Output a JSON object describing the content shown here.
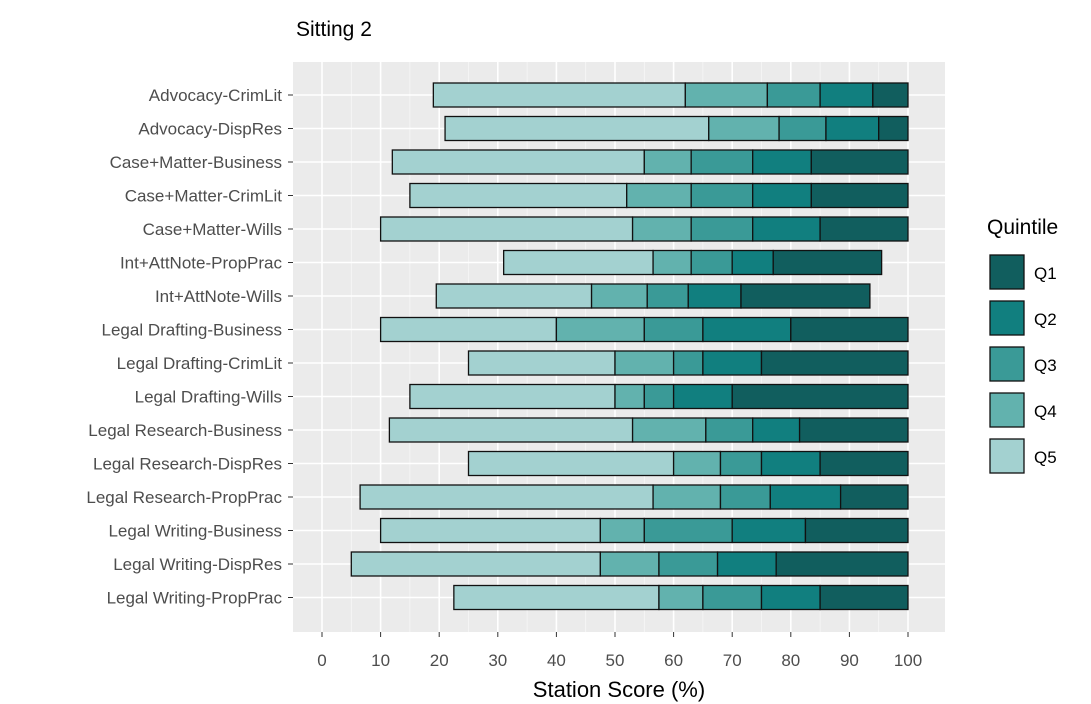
{
  "chart_data": {
    "type": "bar",
    "orientation": "horizontal",
    "stacked": true,
    "title": "Sitting 2",
    "xlabel": "Station Score (%)",
    "ylabel": "",
    "xlim": [
      -5,
      105
    ],
    "xticks": [
      0,
      10,
      20,
      30,
      40,
      50,
      60,
      70,
      80,
      90,
      100
    ],
    "grid": true,
    "legend": {
      "title": "Quintile",
      "position": "right",
      "entries": [
        "Q1",
        "Q2",
        "Q3",
        "Q4",
        "Q5"
      ]
    },
    "colors": {
      "Q1": "#115e5e",
      "Q2": "#117f7f",
      "Q3": "#3a9a97",
      "Q4": "#62b2ae",
      "Q5": "#a3d1d0"
    },
    "categories": [
      "Advocacy-CrimLit",
      "Advocacy-DispRes",
      "Case+Matter-Business",
      "Case+Matter-CrimLit",
      "Case+Matter-Wills",
      "Int+AttNote-PropPrac",
      "Int+AttNote-Wills",
      "Legal Drafting-Business",
      "Legal Drafting-CrimLit",
      "Legal Drafting-Wills",
      "Legal Research-Business",
      "Legal Research-DispRes",
      "Legal Research-PropPrac",
      "Legal Writing-Business",
      "Legal Writing-DispRes",
      "Legal Writing-PropPrac"
    ],
    "breaks_note": "min, Q5/Q4, Q4/Q3, Q3/Q2, Q2/Q1, max",
    "breaks": [
      [
        19,
        62,
        76,
        85,
        94,
        100
      ],
      [
        21,
        66,
        78,
        86,
        95,
        100
      ],
      [
        12,
        55,
        63,
        73.5,
        83.5,
        100
      ],
      [
        15,
        52,
        63,
        73.5,
        83.5,
        100
      ],
      [
        10,
        53,
        63,
        73.5,
        85,
        100
      ],
      [
        31,
        56.5,
        63,
        70,
        77,
        95.5
      ],
      [
        19.5,
        46,
        55.5,
        62.5,
        71.5,
        93.5
      ],
      [
        10,
        40,
        55,
        65,
        80,
        100
      ],
      [
        25,
        50,
        60,
        65,
        75,
        100
      ],
      [
        15,
        50,
        55,
        60,
        70,
        100
      ],
      [
        11.5,
        53,
        65.5,
        73.5,
        81.5,
        100
      ],
      [
        25,
        60,
        68,
        75,
        85,
        100
      ],
      [
        6.5,
        56.5,
        68,
        76.5,
        88.5,
        100
      ],
      [
        10,
        47.5,
        55,
        70,
        82.5,
        100
      ],
      [
        5,
        47.5,
        57.5,
        67.5,
        77.5,
        100
      ],
      [
        22.5,
        57.5,
        65,
        75,
        85,
        100
      ]
    ],
    "series": [
      {
        "name": "Q5",
        "from_break": 0
      },
      {
        "name": "Q4",
        "from_break": 1
      },
      {
        "name": "Q3",
        "from_break": 2
      },
      {
        "name": "Q2",
        "from_break": 3
      },
      {
        "name": "Q1",
        "from_break": 4
      }
    ]
  }
}
